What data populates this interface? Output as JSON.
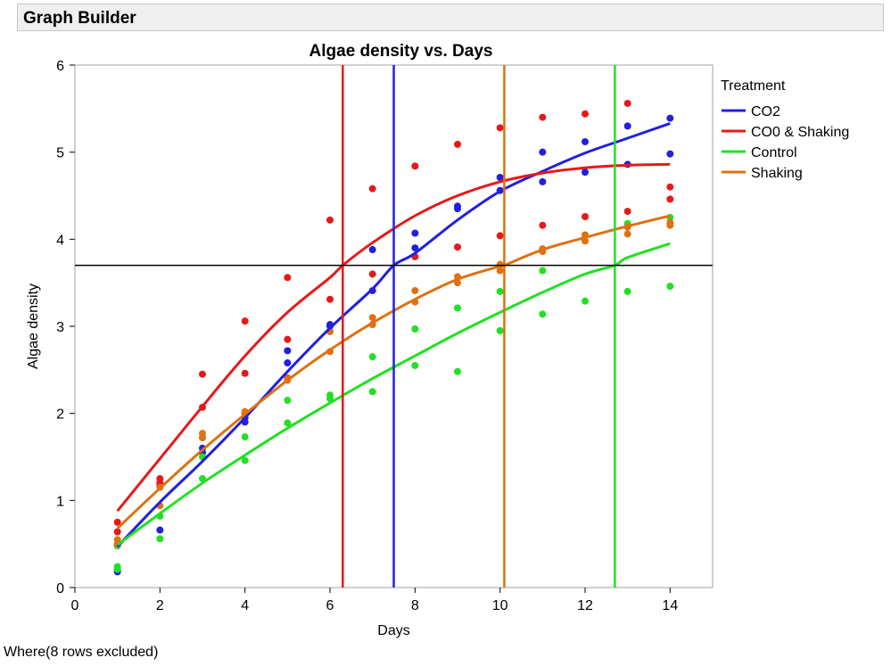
{
  "window": {
    "title": "Graph Builder"
  },
  "footnote": "Where(8 rows excluded)",
  "chart_data": {
    "type": "scatter",
    "title": "Algae density vs. Days",
    "xlabel": "Days",
    "ylabel": "Algae density",
    "xlim": [
      0,
      15
    ],
    "ylim": [
      0,
      6
    ],
    "xticks": [
      "0",
      "2",
      "4",
      "6",
      "8",
      "10",
      "12",
      "14"
    ],
    "yticks": [
      "0",
      "1",
      "2",
      "3",
      "4",
      "5",
      "6"
    ],
    "legend": {
      "title": "Treatment",
      "position": "right"
    },
    "reference_line_y": 3.7,
    "series": [
      {
        "name": "CO2",
        "color": "#2020e0",
        "points": [
          [
            1,
            0.18
          ],
          [
            1,
            0.2
          ],
          [
            1,
            0.48
          ],
          [
            2,
            0.66
          ],
          [
            2,
            1.17
          ],
          [
            2,
            1.2
          ],
          [
            3,
            1.55
          ],
          [
            3,
            1.6
          ],
          [
            4,
            1.9
          ],
          [
            4,
            1.95
          ],
          [
            5,
            2.58
          ],
          [
            5,
            2.72
          ],
          [
            6,
            3.0
          ],
          [
            6,
            3.02
          ],
          [
            7,
            3.41
          ],
          [
            7,
            3.88
          ],
          [
            8,
            3.9
          ],
          [
            8,
            4.07
          ],
          [
            9,
            4.35
          ],
          [
            9,
            4.38
          ],
          [
            10,
            4.56
          ],
          [
            10,
            4.71
          ],
          [
            11,
            4.66
          ],
          [
            11,
            5.0
          ],
          [
            12,
            4.77
          ],
          [
            12,
            5.12
          ],
          [
            13,
            4.86
          ],
          [
            13,
            5.3
          ],
          [
            14,
            4.98
          ],
          [
            14,
            5.39
          ]
        ],
        "fit": [
          [
            1,
            0.47
          ],
          [
            2,
            0.98
          ],
          [
            3,
            1.45
          ],
          [
            4,
            1.95
          ],
          [
            5,
            2.48
          ],
          [
            6,
            2.98
          ],
          [
            7,
            3.43
          ],
          [
            7.5,
            3.7
          ],
          [
            8,
            3.84
          ],
          [
            9,
            4.22
          ],
          [
            10,
            4.55
          ],
          [
            11,
            4.78
          ],
          [
            12,
            4.99
          ],
          [
            13,
            5.16
          ],
          [
            14,
            5.33
          ]
        ],
        "crossing_x": 7.5
      },
      {
        "name": "CO0 & Shaking",
        "color": "#e81818",
        "points": [
          [
            1,
            0.64
          ],
          [
            1,
            0.75
          ],
          [
            2,
            1.2
          ],
          [
            2,
            1.25
          ],
          [
            3,
            2.07
          ],
          [
            3,
            2.45
          ],
          [
            4,
            2.46
          ],
          [
            4,
            3.06
          ],
          [
            5,
            2.85
          ],
          [
            5,
            3.56
          ],
          [
            6,
            3.31
          ],
          [
            6,
            4.22
          ],
          [
            7,
            3.6
          ],
          [
            7,
            4.58
          ],
          [
            8,
            3.8
          ],
          [
            8,
            4.84
          ],
          [
            9,
            3.91
          ],
          [
            9,
            5.09
          ],
          [
            10,
            4.04
          ],
          [
            10,
            5.28
          ],
          [
            11,
            4.16
          ],
          [
            11,
            5.4
          ],
          [
            12,
            4.26
          ],
          [
            12,
            5.44
          ],
          [
            13,
            4.32
          ],
          [
            13,
            5.56
          ],
          [
            14,
            4.46
          ],
          [
            14,
            4.6
          ]
        ],
        "fit": [
          [
            1,
            0.88
          ],
          [
            2,
            1.48
          ],
          [
            3,
            2.08
          ],
          [
            4,
            2.66
          ],
          [
            5,
            3.16
          ],
          [
            6,
            3.56
          ],
          [
            6.3,
            3.7
          ],
          [
            7,
            3.96
          ],
          [
            8,
            4.27
          ],
          [
            9,
            4.5
          ],
          [
            10,
            4.66
          ],
          [
            11,
            4.76
          ],
          [
            12,
            4.82
          ],
          [
            13,
            4.85
          ],
          [
            14,
            4.86
          ]
        ],
        "crossing_x": 6.3
      },
      {
        "name": "Control",
        "color": "#22e022",
        "points": [
          [
            1,
            0.21
          ],
          [
            1,
            0.24
          ],
          [
            1,
            0.48
          ],
          [
            2,
            0.56
          ],
          [
            2,
            0.82
          ],
          [
            3,
            1.25
          ],
          [
            3,
            1.5
          ],
          [
            4,
            1.46
          ],
          [
            4,
            1.73
          ],
          [
            5,
            1.89
          ],
          [
            5,
            2.15
          ],
          [
            6,
            2.17
          ],
          [
            6,
            2.21
          ],
          [
            7,
            2.25
          ],
          [
            7,
            2.65
          ],
          [
            8,
            2.55
          ],
          [
            8,
            2.97
          ],
          [
            9,
            2.48
          ],
          [
            9,
            3.21
          ],
          [
            10,
            2.95
          ],
          [
            10,
            3.4
          ],
          [
            11,
            3.14
          ],
          [
            11,
            3.64
          ],
          [
            12,
            3.29
          ],
          [
            13,
            3.4
          ],
          [
            13,
            4.18
          ],
          [
            14,
            3.46
          ],
          [
            14,
            4.25
          ]
        ],
        "fit": [
          [
            1,
            0.49
          ],
          [
            2,
            0.85
          ],
          [
            3,
            1.2
          ],
          [
            4,
            1.52
          ],
          [
            5,
            1.83
          ],
          [
            6,
            2.12
          ],
          [
            7,
            2.4
          ],
          [
            8,
            2.66
          ],
          [
            9,
            2.92
          ],
          [
            10,
            3.16
          ],
          [
            11,
            3.39
          ],
          [
            12,
            3.6
          ],
          [
            12.7,
            3.7
          ],
          [
            13,
            3.79
          ],
          [
            14,
            3.95
          ]
        ],
        "crossing_x": 12.7
      },
      {
        "name": "Shaking",
        "color": "#e07010",
        "points": [
          [
            1,
            0.5
          ],
          [
            1,
            0.55
          ],
          [
            2,
            0.94
          ],
          [
            2,
            1.15
          ],
          [
            3,
            1.72
          ],
          [
            3,
            1.77
          ],
          [
            4,
            2.0
          ],
          [
            4,
            2.02
          ],
          [
            5,
            2.38
          ],
          [
            5,
            2.41
          ],
          [
            6,
            2.71
          ],
          [
            6,
            2.94
          ],
          [
            7,
            3.02
          ],
          [
            7,
            3.1
          ],
          [
            8,
            3.28
          ],
          [
            8,
            3.41
          ],
          [
            9,
            3.5
          ],
          [
            9,
            3.57
          ],
          [
            10,
            3.64
          ],
          [
            10,
            3.71
          ],
          [
            11,
            3.86
          ],
          [
            11,
            3.89
          ],
          [
            12,
            3.98
          ],
          [
            12,
            4.05
          ],
          [
            13,
            4.06
          ],
          [
            13,
            4.14
          ],
          [
            14,
            4.16
          ],
          [
            14,
            4.19
          ]
        ],
        "fit": [
          [
            1,
            0.68
          ],
          [
            2,
            1.14
          ],
          [
            3,
            1.58
          ],
          [
            4,
            1.99
          ],
          [
            5,
            2.38
          ],
          [
            6,
            2.73
          ],
          [
            7,
            3.04
          ],
          [
            8,
            3.31
          ],
          [
            9,
            3.54
          ],
          [
            10,
            3.69
          ],
          [
            10.1,
            3.7
          ],
          [
            11,
            3.88
          ],
          [
            12,
            4.02
          ],
          [
            13,
            4.15
          ],
          [
            14,
            4.27
          ]
        ],
        "crossing_x": 10.1
      }
    ]
  }
}
